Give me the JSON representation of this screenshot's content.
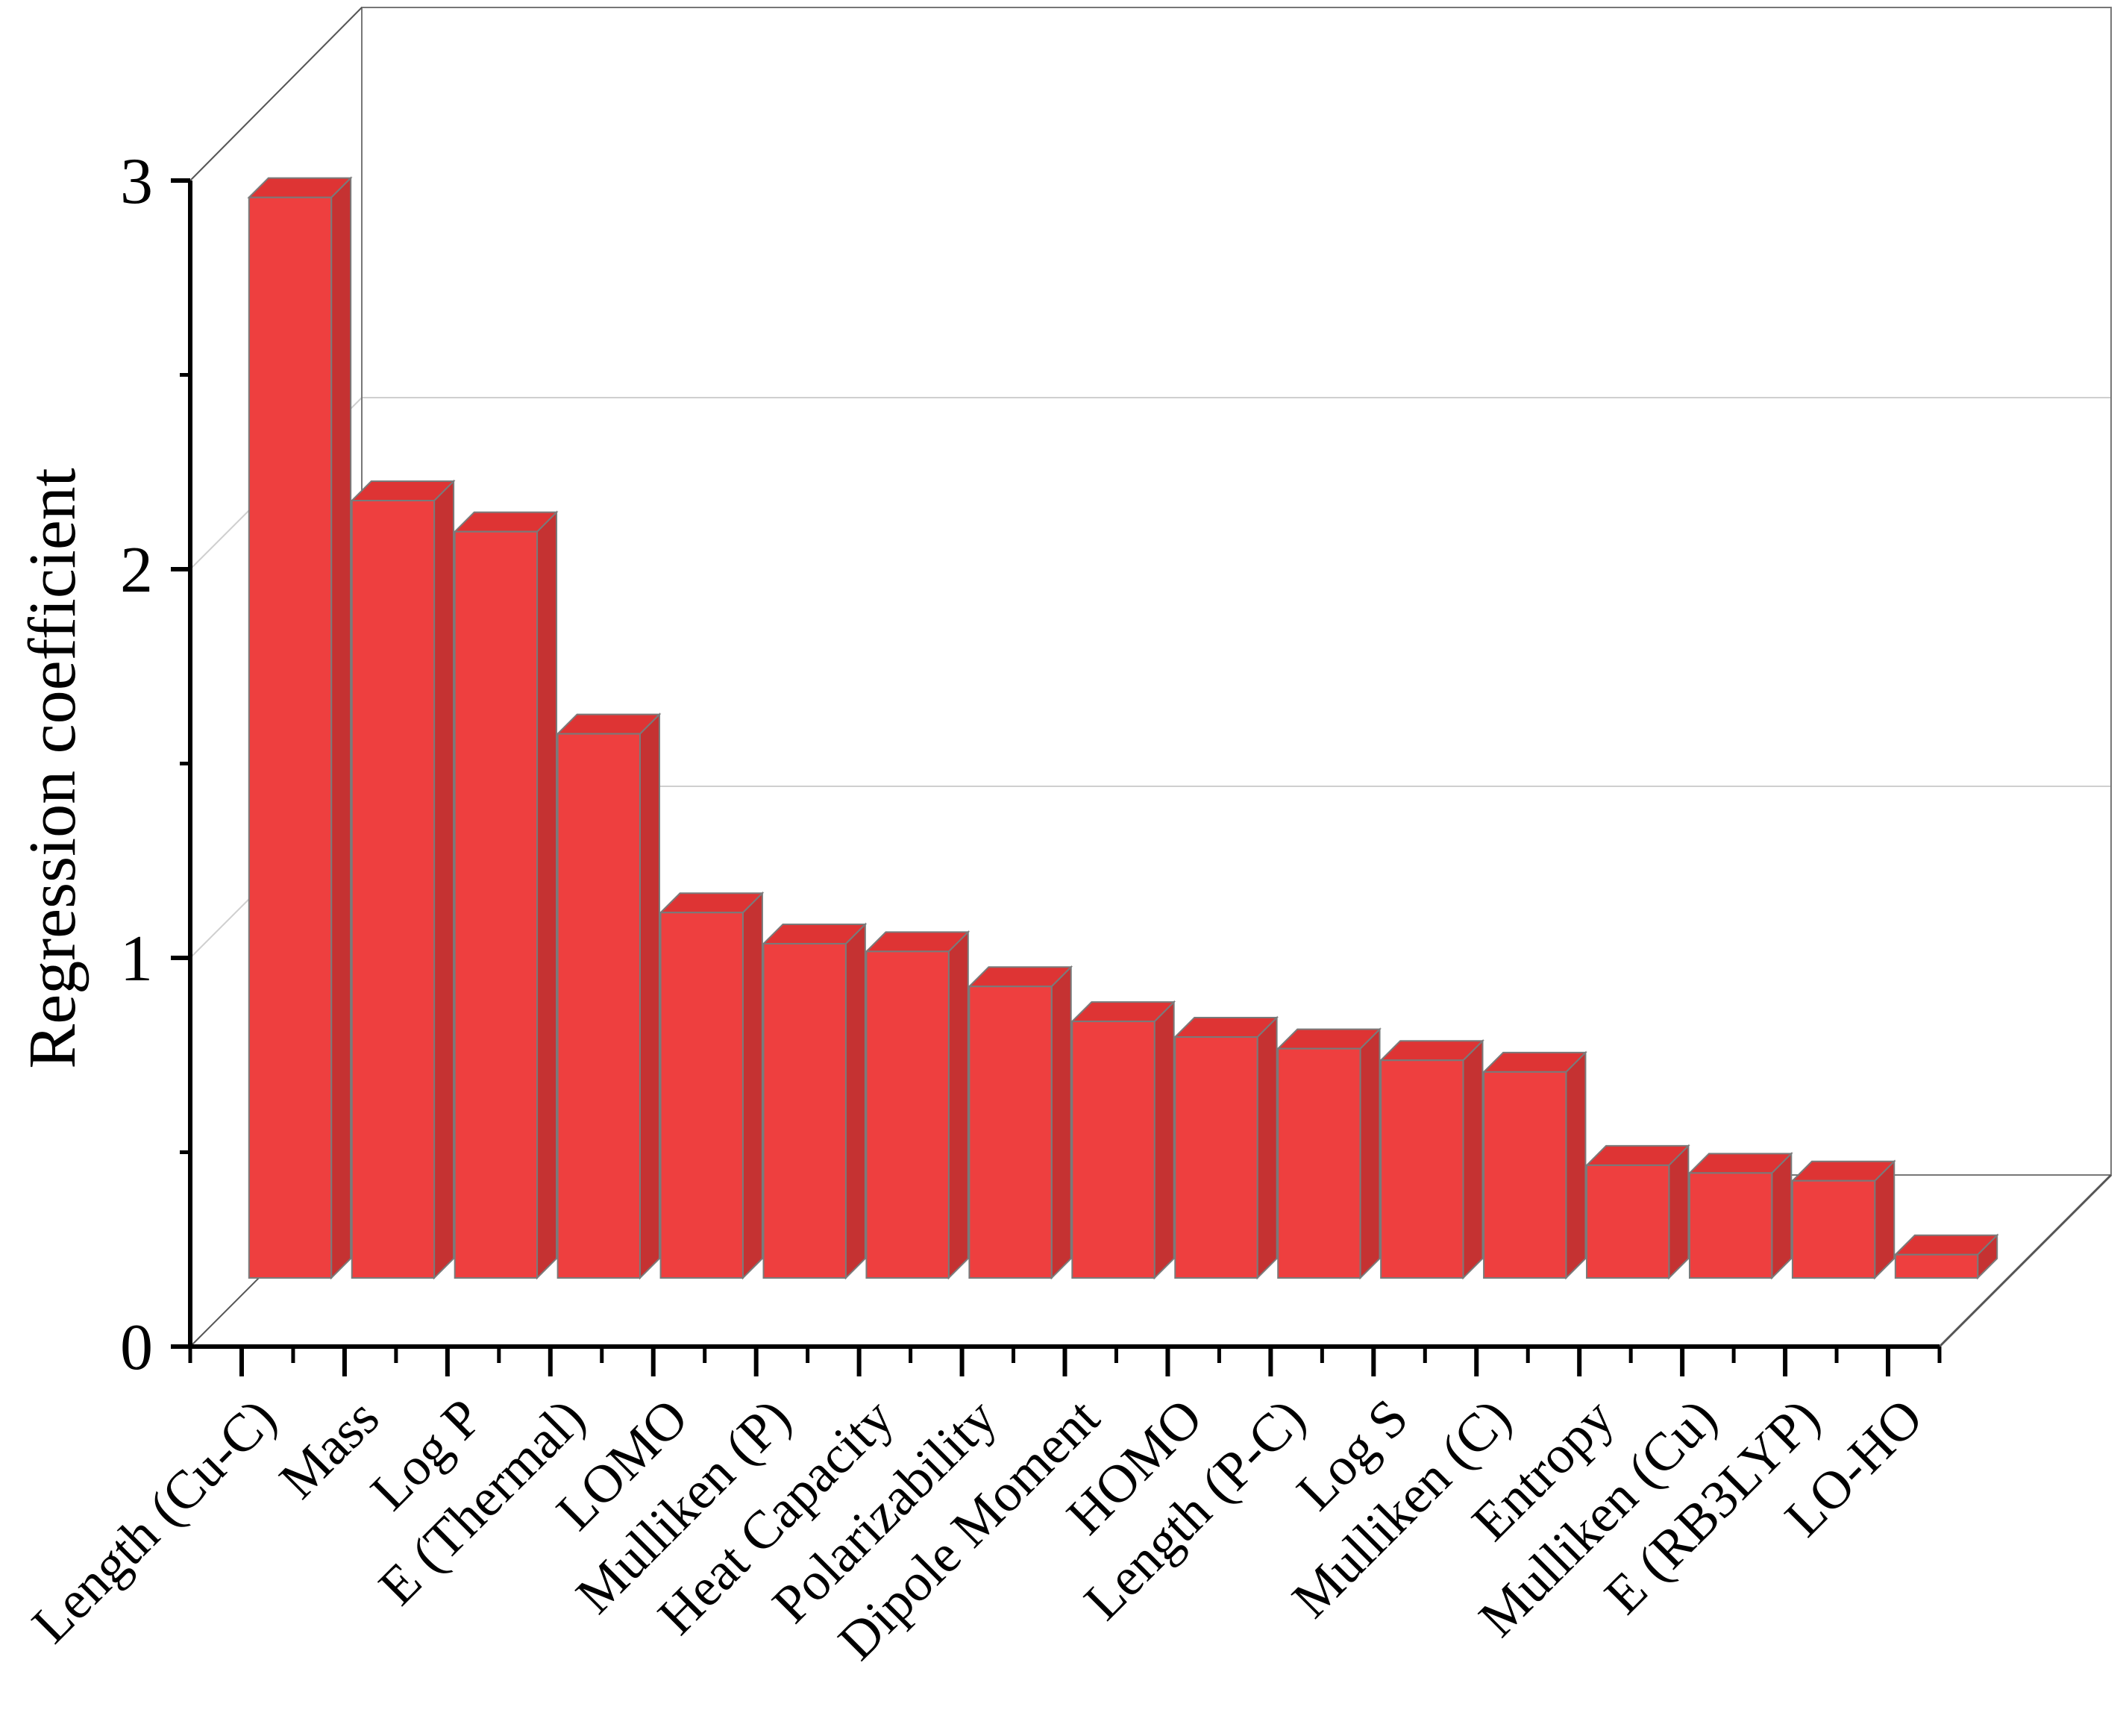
{
  "chart_data": {
    "type": "bar",
    "ylabel": "Regression coefficient",
    "xlabel": "",
    "ylim": [
      0,
      3
    ],
    "yticks": [
      "0",
      "1",
      "2",
      "3"
    ],
    "grid": true,
    "categories": [
      "Length (Cu-C)",
      "Mass",
      "Log P",
      "E (Thermal)",
      "LOMO",
      "Mulliken (P)",
      "Heat Capacity",
      "Polarizability",
      "Dipole Moment",
      "HOMO",
      "Length (P-C)",
      "Log S",
      "Mulliken (C)",
      "Entropy",
      "Mulliken (Cu)",
      "E (RB3LYP)",
      "LO-HO"
    ],
    "values": [
      2.78,
      2.0,
      1.92,
      1.4,
      0.94,
      0.86,
      0.84,
      0.75,
      0.66,
      0.62,
      0.59,
      0.56,
      0.53,
      0.29,
      0.27,
      0.25,
      0.06
    ],
    "colors": {
      "bar_front": "#ee3f3f",
      "bar_top": "#de3434",
      "bar_side": "#c53232",
      "bar_edge": "#7a7a7a"
    }
  }
}
